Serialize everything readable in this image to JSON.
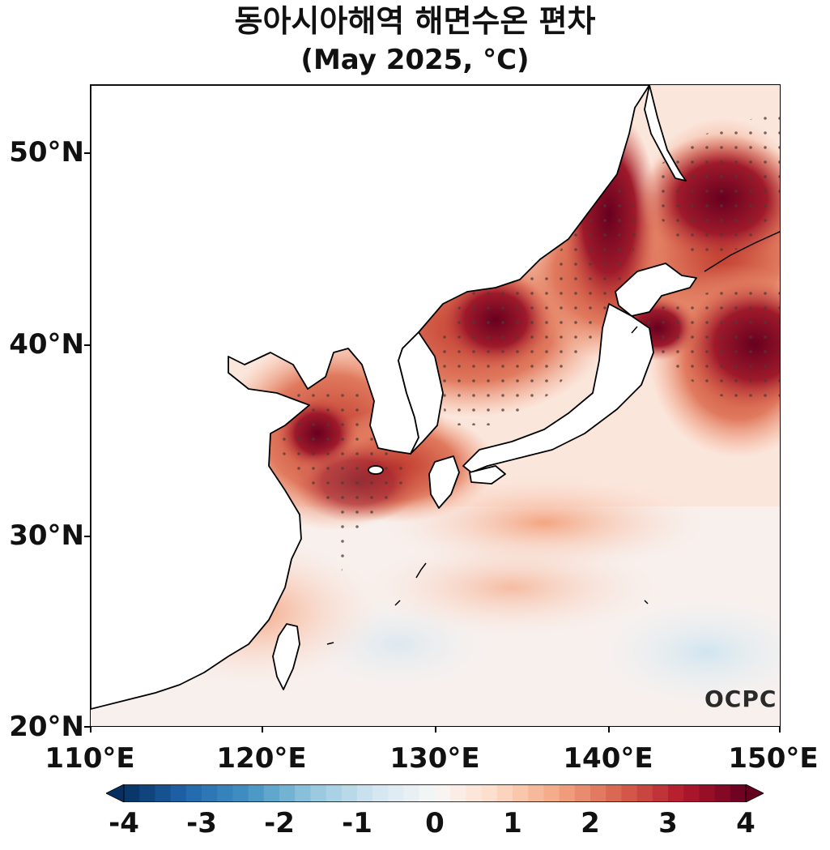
{
  "title": {
    "line1": "동아시아해역 해면수온 편차",
    "line2": "(May 2025, °C)"
  },
  "axes": {
    "y_ticks": [
      "50°N",
      "40°N",
      "30°N",
      "20°N"
    ],
    "x_ticks": [
      "110°E",
      "120°E",
      "130°E",
      "140°E",
      "150°E"
    ],
    "lon_range": [
      110,
      150
    ],
    "lat_range": [
      20,
      53.5
    ]
  },
  "colorbar": {
    "labels": [
      "-4",
      "-3",
      "-2",
      "-1",
      "0",
      "1",
      "2",
      "3",
      "4"
    ],
    "min": -4,
    "max": 4,
    "low_color": "#08306b",
    "zero_color": "#f7f7f7",
    "high_color": "#67001f"
  },
  "logo": "OCPC",
  "colors": {
    "land": "#ffffff",
    "coast": "#000000",
    "stipple": "#4a3a36"
  }
}
